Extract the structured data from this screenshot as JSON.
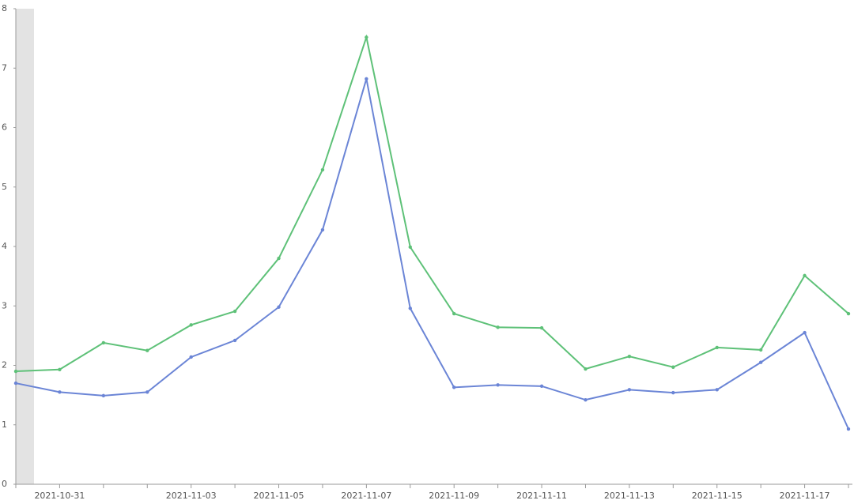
{
  "chart_data": {
    "type": "line",
    "categories": [
      null,
      "2021-10-31",
      null,
      null,
      "2021-11-03",
      null,
      "2021-11-05",
      null,
      "2021-11-07",
      null,
      "2021-11-09",
      null,
      "2021-11-11",
      null,
      "2021-11-13",
      null,
      "2021-11-15",
      null,
      "2021-11-17",
      null
    ],
    "series": [
      {
        "color": "#6b85d6",
        "values": [
          1.7,
          1.55,
          1.49,
          1.55,
          2.14,
          2.42,
          2.98,
          4.28,
          6.82,
          2.96,
          1.63,
          1.67,
          1.65,
          1.42,
          1.59,
          1.54,
          1.59,
          2.05,
          2.55,
          0.93
        ]
      },
      {
        "color": "#5ec178",
        "values": [
          1.9,
          1.93,
          2.38,
          2.25,
          2.68,
          2.91,
          3.8,
          5.29,
          7.52,
          3.99,
          2.87,
          2.64,
          2.63,
          1.94,
          2.15,
          1.97,
          2.3,
          2.26,
          3.51,
          2.87
        ]
      }
    ],
    "ylim": [
      0,
      8
    ],
    "yticks": [
      0,
      1,
      2,
      3,
      4,
      5,
      6,
      7,
      8
    ],
    "grid": false
  }
}
